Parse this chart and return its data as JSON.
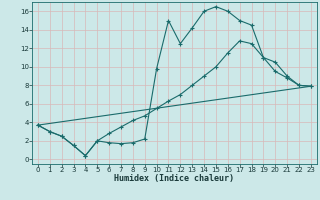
{
  "xlabel": "Humidex (Indice chaleur)",
  "bg_color": "#cce8e8",
  "grid_color": "#b0d4d4",
  "line_color": "#1a6b6b",
  "xlim": [
    -0.5,
    23.5
  ],
  "ylim": [
    -0.5,
    17
  ],
  "xticks": [
    0,
    1,
    2,
    3,
    4,
    5,
    6,
    7,
    8,
    9,
    10,
    11,
    12,
    13,
    14,
    15,
    16,
    17,
    18,
    19,
    20,
    21,
    22,
    23
  ],
  "yticks": [
    0,
    2,
    4,
    6,
    8,
    10,
    12,
    14,
    16
  ],
  "line1_x": [
    0,
    1,
    2,
    3,
    4,
    5,
    6,
    7,
    8,
    9,
    10,
    11,
    12,
    13,
    14,
    15,
    16,
    17,
    18,
    19,
    20,
    21,
    22,
    23
  ],
  "line1_y": [
    3.7,
    3.0,
    2.5,
    1.5,
    0.4,
    2.0,
    1.8,
    1.7,
    1.8,
    2.2,
    9.8,
    15.0,
    12.5,
    14.2,
    16.0,
    16.5,
    16.0,
    15.0,
    14.5,
    11.0,
    9.5,
    8.8,
    8.0,
    7.9
  ],
  "line2_x": [
    0,
    1,
    2,
    3,
    4,
    5,
    6,
    7,
    8,
    9,
    10,
    11,
    12,
    13,
    14,
    15,
    16,
    17,
    18,
    19,
    20,
    21,
    22,
    23
  ],
  "line2_y": [
    3.7,
    3.0,
    2.5,
    1.5,
    0.4,
    2.0,
    2.8,
    3.5,
    4.2,
    4.7,
    5.5,
    6.3,
    7.0,
    8.0,
    9.0,
    10.0,
    11.5,
    12.8,
    12.5,
    11.0,
    10.5,
    9.0,
    8.0,
    7.9
  ],
  "line3_x": [
    0,
    23
  ],
  "line3_y": [
    3.7,
    7.9
  ]
}
